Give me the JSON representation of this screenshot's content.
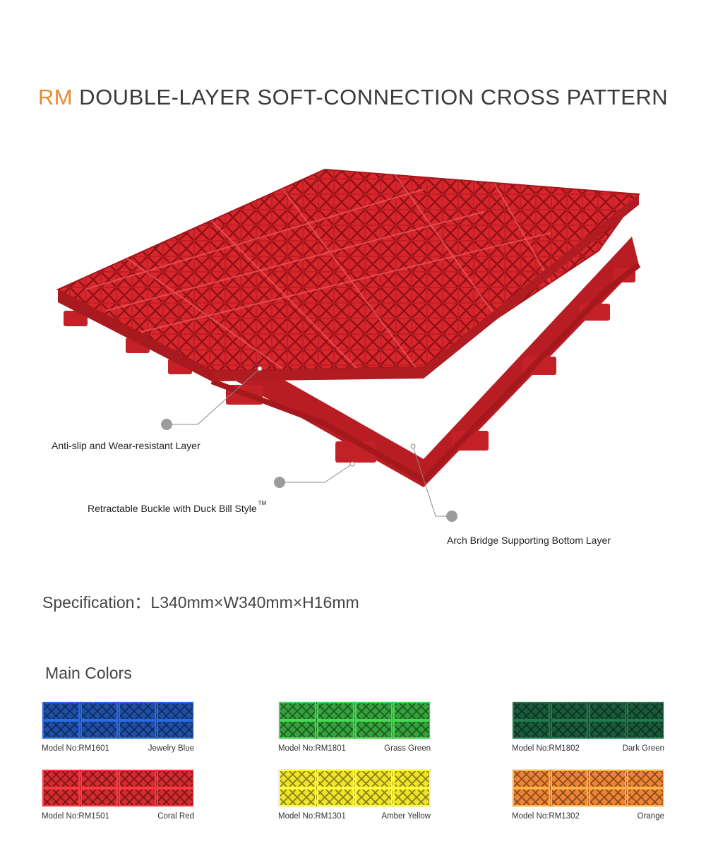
{
  "title": {
    "accent": "RM",
    "rest": " DOUBLE-LAYER SOFT-CONNECTION CROSS PATTERN"
  },
  "callouts": {
    "layer": "Anti-slip and Wear-resistant Layer",
    "buckle": "Retractable Buckle with Duck Bill Style",
    "buckle_mark": "TM",
    "bottom": "Arch Bridge Supporting Bottom Layer"
  },
  "specification": "Specification：L340mm×W340mm×H16mm",
  "main_colors": {
    "heading": "Main Colors",
    "items": [
      {
        "model": "Model No:RM1601",
        "name": "Jewelry Blue",
        "color": "#1e4fa6"
      },
      {
        "model": "Model No:RM1801",
        "name": "Grass Green",
        "color": "#34a13c"
      },
      {
        "model": "Model No:RM1802",
        "name": "Dark Green",
        "color": "#185a3a"
      },
      {
        "model": "Model No:RM1501",
        "name": "Coral Red",
        "color": "#d42a30"
      },
      {
        "model": "Model No:RM1301",
        "name": "Amber Yellow",
        "color": "#eee22a"
      },
      {
        "model": "Model No:RM1302",
        "name": "Orange",
        "color": "#ee8433"
      }
    ]
  },
  "product_color": "#d8262c"
}
